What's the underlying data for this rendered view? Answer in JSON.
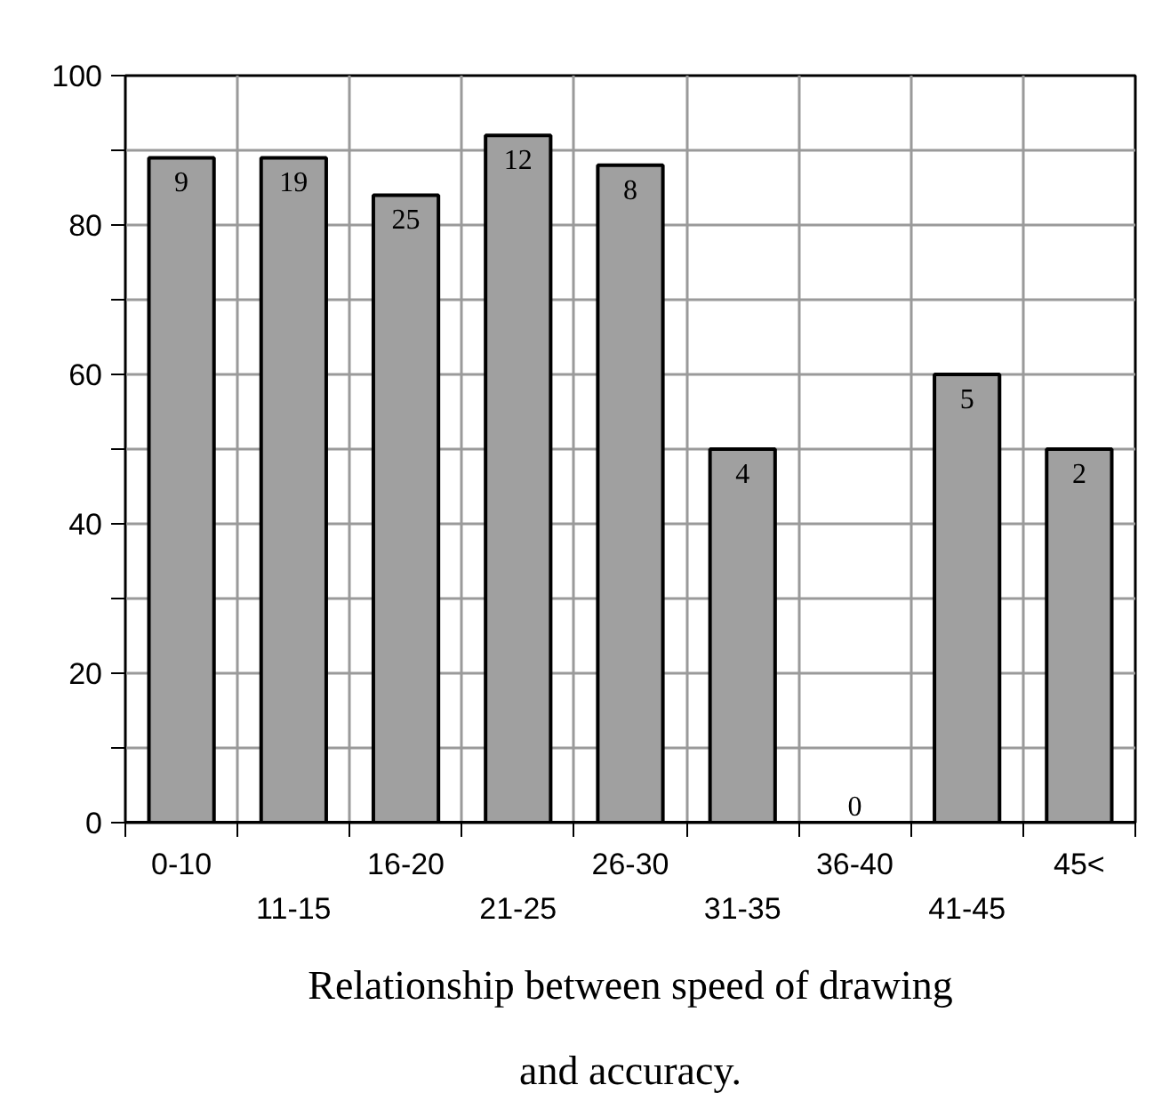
{
  "chart_data": {
    "type": "bar",
    "title": "Relationship between speed of drawing\nand accuracy.",
    "categories": [
      "0-10",
      "11-15",
      "16-20",
      "21-25",
      "26-30",
      "31-35",
      "36-40",
      "41-45",
      "45<"
    ],
    "values": [
      89,
      89,
      84,
      92,
      88,
      50,
      0,
      60,
      50
    ],
    "annotations": [
      {
        "text": "9",
        "x": "0-10",
        "y": 89
      },
      {
        "text": "19",
        "x": "11-15",
        "y": 89
      },
      {
        "text": "25",
        "x": "16-20",
        "y": 84
      },
      {
        "text": "12",
        "x": "21-25",
        "y": 92
      },
      {
        "text": "8",
        "x": "26-30",
        "y": 88
      },
      {
        "text": "4",
        "x": "31-35",
        "y": 50
      },
      {
        "text": "0",
        "x": "36-40",
        "y": 0
      },
      {
        "text": "5",
        "x": "41-45",
        "y": 60
      },
      {
        "text": "2",
        "x": "45<",
        "y": 50
      }
    ],
    "color": "#a0a0a0",
    "ylim": [
      0,
      100
    ],
    "yticks": [
      0,
      {
        "value": 10,
        "label": null
      },
      20,
      {
        "value": 30,
        "label": null
      },
      40,
      {
        "value": 50,
        "label": null
      },
      60,
      {
        "value": 70,
        "label": null
      },
      80,
      {
        "value": 90,
        "label": null
      },
      100
    ],
    "grid": true
  }
}
